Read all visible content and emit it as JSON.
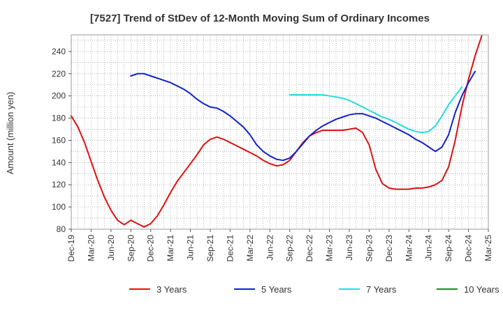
{
  "chart_data": {
    "type": "line",
    "title": "[7527]  Trend of StDev of 12-Month Moving Sum of Ordinary Incomes",
    "xlabel": "",
    "ylabel": "Amount (million yen)",
    "ylim": [
      80,
      255
    ],
    "yticks": [
      80,
      100,
      120,
      140,
      160,
      180,
      200,
      220,
      240
    ],
    "x_tick_labels": [
      "Dec-19",
      "Mar-20",
      "Jun-20",
      "Sep-20",
      "Dec-20",
      "Mar-21",
      "Jun-21",
      "Sep-21",
      "Dec-21",
      "Mar-22",
      "Jun-22",
      "Sep-22",
      "Dec-22",
      "Mar-23",
      "Jun-23",
      "Sep-23",
      "Dec-23",
      "Mar-24",
      "Jun-24",
      "Sep-24",
      "Dec-24",
      "Mar-25"
    ],
    "x_start": "Dec-19",
    "x_months": 63,
    "grid": true,
    "legend_position": "bottom",
    "series": [
      {
        "name": "3 Years",
        "color": "#dd1111",
        "start_index": 0,
        "values": [
          182,
          172,
          158,
          141,
          124,
          109,
          97,
          88,
          84,
          88,
          85,
          82,
          85,
          92,
          102,
          113,
          123,
          131,
          139,
          147,
          156,
          161,
          163,
          161,
          158,
          155,
          152,
          149,
          146,
          142,
          139,
          137,
          138,
          142,
          150,
          158,
          164,
          167,
          169,
          169,
          169,
          169,
          170,
          171,
          167,
          156,
          134,
          121,
          117,
          116,
          116,
          116,
          117,
          117,
          118,
          120,
          124,
          136,
          160,
          190,
          215,
          236,
          254
        ]
      },
      {
        "name": "5 Years",
        "color": "#1122cc",
        "start_index": 9,
        "values": [
          218,
          220,
          220,
          218,
          216,
          214,
          212,
          209,
          206,
          202,
          197,
          193,
          190,
          189,
          186,
          182,
          177,
          172,
          165,
          156,
          150,
          146,
          143,
          142,
          144,
          150,
          157,
          164,
          169,
          173,
          176,
          179,
          181,
          183,
          184,
          184,
          182,
          180,
          177,
          174,
          171,
          168,
          165,
          161,
          158,
          154,
          150,
          154,
          165,
          185,
          200,
          212,
          222
        ]
      },
      {
        "name": "7 Years",
        "color": "#22dddd",
        "start_index": 33,
        "values": [
          201,
          201,
          201,
          201,
          201,
          201,
          200,
          199,
          198,
          196,
          193,
          190,
          187,
          184,
          181,
          179,
          176,
          173,
          170,
          168,
          167,
          168,
          173,
          182,
          192,
          200,
          208
        ]
      },
      {
        "name": "10 Years",
        "color": "#228822",
        "start_index": 0,
        "values": []
      }
    ]
  }
}
